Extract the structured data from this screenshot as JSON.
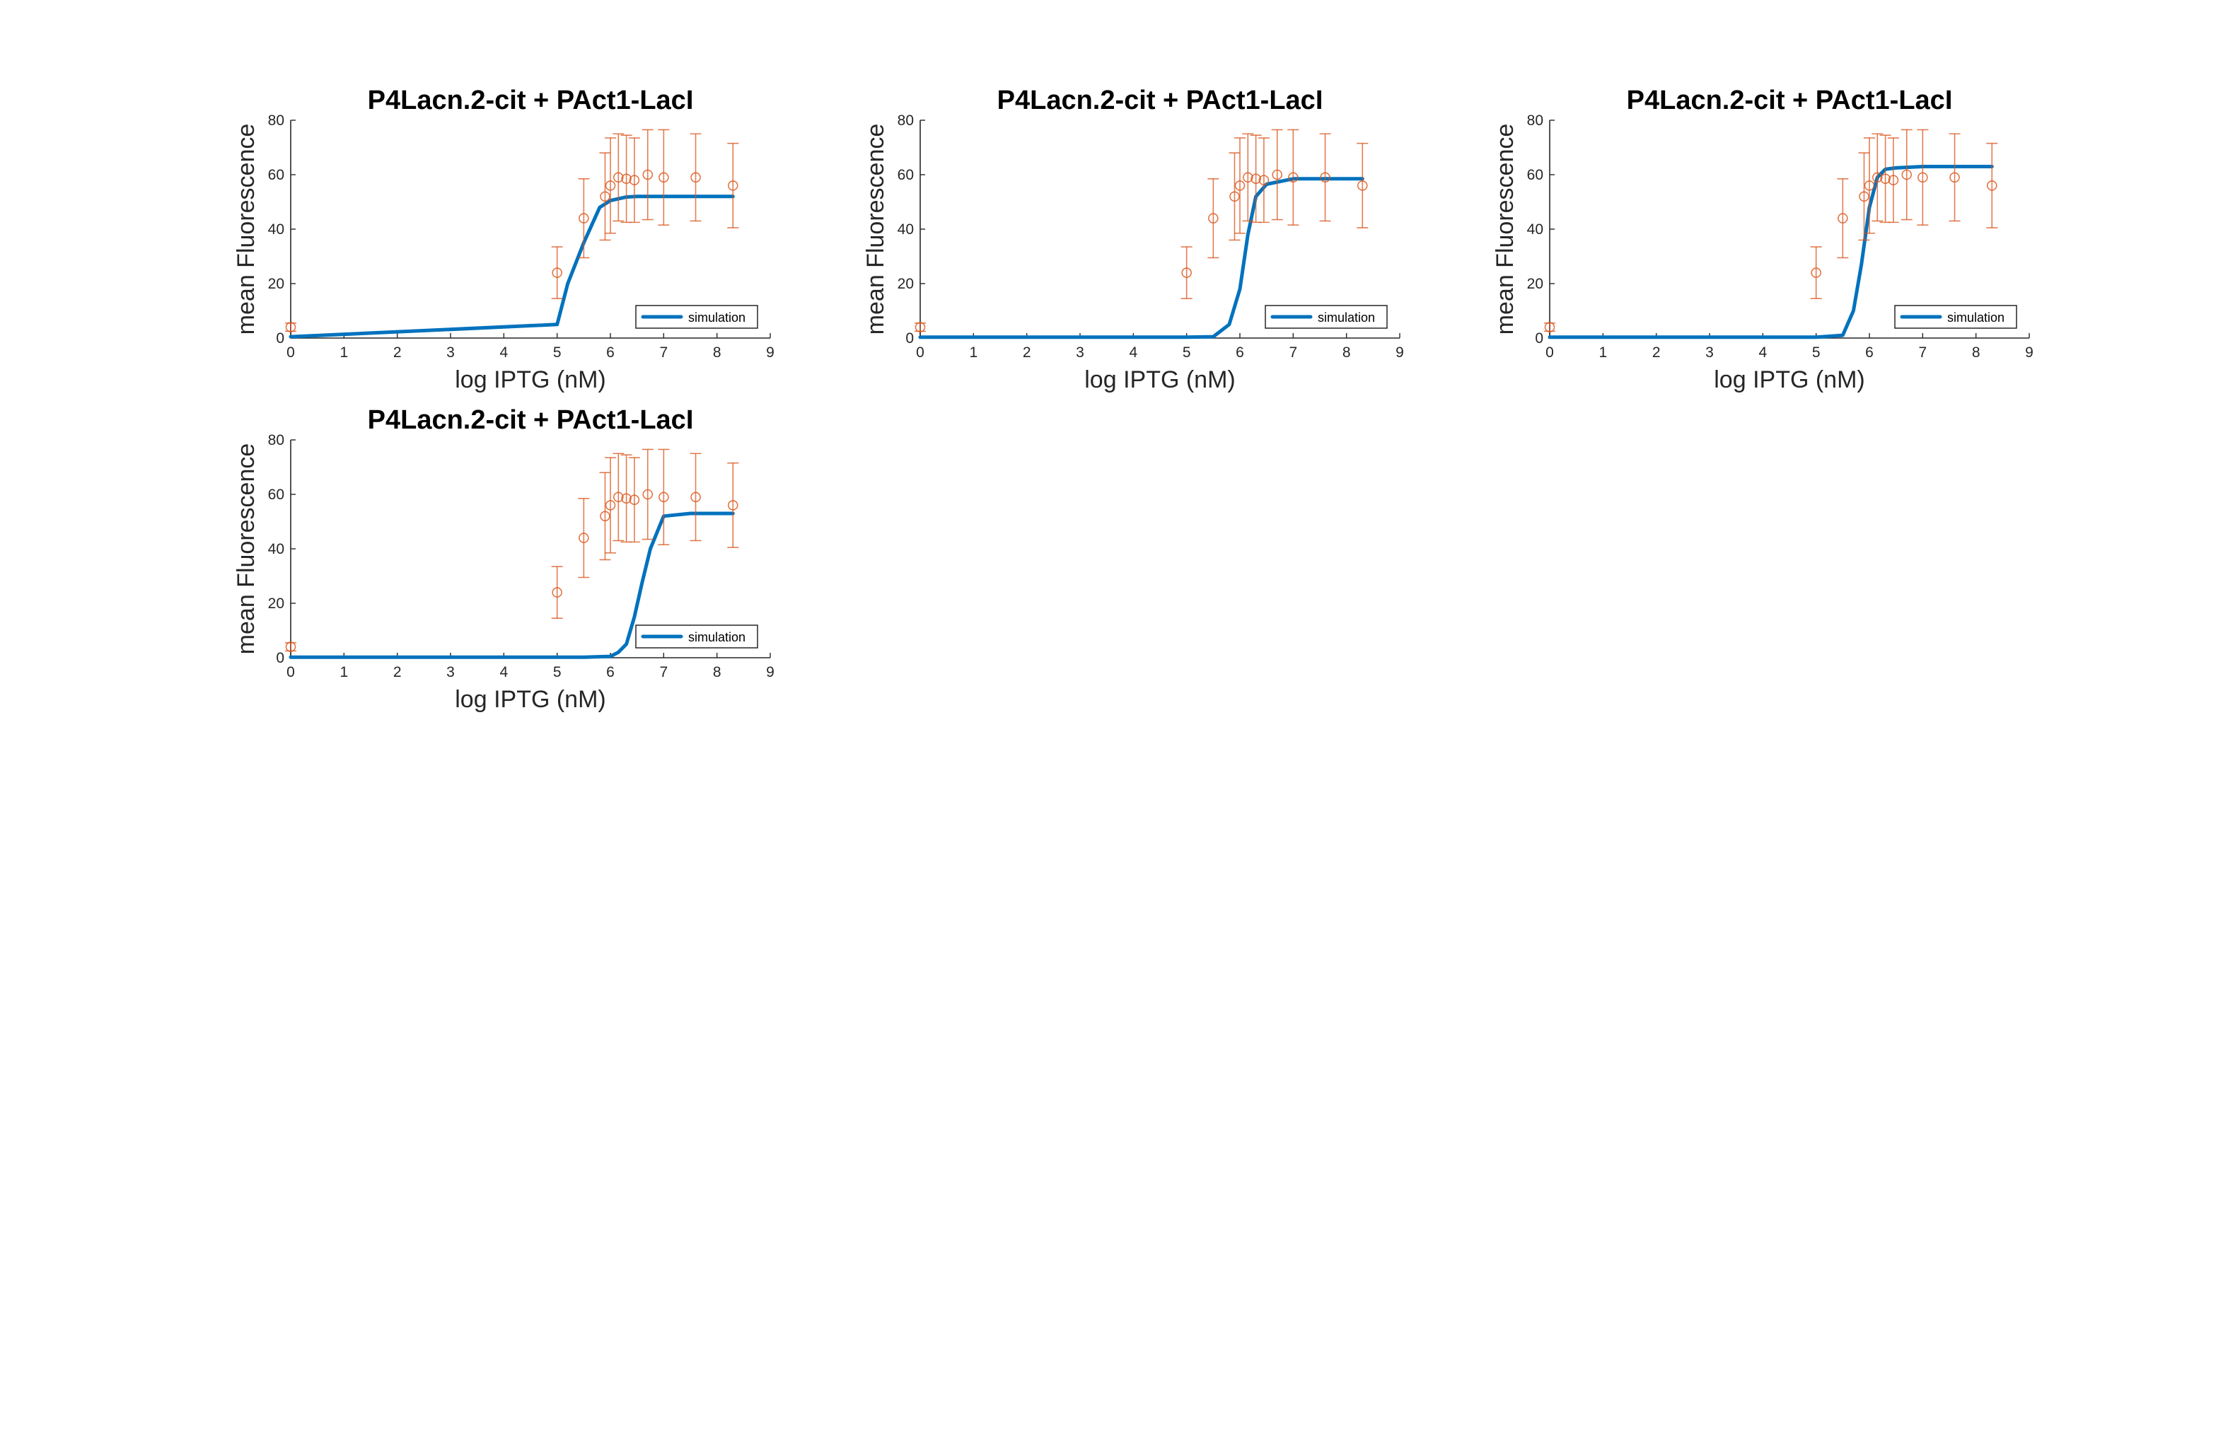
{
  "chart_data": [
    {
      "type": "line",
      "title": "P4Lacn.2-cit + PAct1-LacI",
      "xlabel": "log IPTG (nM)",
      "ylabel": "mean Fluorescence",
      "xlim": [
        0,
        9
      ],
      "ylim": [
        0,
        80
      ],
      "xticks": [
        "0",
        "1",
        "2",
        "3",
        "4",
        "5",
        "6",
        "7",
        "8",
        "9"
      ],
      "yticks": [
        "0",
        "20",
        "40",
        "60",
        "80"
      ],
      "grid": false,
      "legend_position": "bottom-right",
      "series": [
        {
          "name": "simulation",
          "style": "line",
          "color": "#0072BD",
          "x": [
            0,
            5,
            5.2,
            5.5,
            5.8,
            6.0,
            6.3,
            6.5,
            7,
            8.3
          ],
          "y": [
            0.5,
            5,
            20,
            35,
            48,
            50.5,
            51.8,
            52,
            52,
            52
          ]
        },
        {
          "name": "data",
          "style": "errorbar",
          "color": "#D95319",
          "x": [
            0,
            5.0,
            5.5,
            5.9,
            6.0,
            6.15,
            6.3,
            6.45,
            6.7,
            7.0,
            7.6,
            8.3
          ],
          "y": [
            4,
            24,
            44,
            52,
            56,
            59,
            58.5,
            58,
            60,
            59,
            59,
            56
          ],
          "yerr": [
            1.5,
            9.5,
            14.5,
            16,
            17.5,
            16,
            16,
            15.5,
            16.5,
            17.5,
            16,
            15.5
          ]
        }
      ]
    },
    {
      "type": "line",
      "title": "P4Lacn.2-cit + PAct1-LacI",
      "xlabel": "log IPTG (nM)",
      "ylabel": "mean Fluorescence",
      "xlim": [
        0,
        9
      ],
      "ylim": [
        0,
        80
      ],
      "xticks": [
        "0",
        "1",
        "2",
        "3",
        "4",
        "5",
        "6",
        "7",
        "8",
        "9"
      ],
      "yticks": [
        "0",
        "20",
        "40",
        "60",
        "80"
      ],
      "grid": false,
      "legend_position": "bottom-right",
      "series": [
        {
          "name": "simulation",
          "style": "line",
          "color": "#0072BD",
          "x": [
            0,
            5.0,
            5.5,
            5.8,
            6.0,
            6.15,
            6.3,
            6.5,
            7.0,
            8.3
          ],
          "y": [
            0.3,
            0.3,
            0.5,
            5,
            18,
            38,
            52,
            56.5,
            58.5,
            58.5
          ]
        },
        {
          "name": "data",
          "style": "errorbar",
          "color": "#D95319",
          "x": [
            0,
            5.0,
            5.5,
            5.9,
            6.0,
            6.15,
            6.3,
            6.45,
            6.7,
            7.0,
            7.6,
            8.3
          ],
          "y": [
            4,
            24,
            44,
            52,
            56,
            59,
            58.5,
            58,
            60,
            59,
            59,
            56
          ],
          "yerr": [
            1.5,
            9.5,
            14.5,
            16,
            17.5,
            16,
            16,
            15.5,
            16.5,
            17.5,
            16,
            15.5
          ]
        }
      ]
    },
    {
      "type": "line",
      "title": "P4Lacn.2-cit + PAct1-LacI",
      "xlabel": "log IPTG (nM)",
      "ylabel": "mean Fluorescence",
      "xlim": [
        0,
        9
      ],
      "ylim": [
        0,
        80
      ],
      "xticks": [
        "0",
        "1",
        "2",
        "3",
        "4",
        "5",
        "6",
        "7",
        "8",
        "9"
      ],
      "yticks": [
        "0",
        "20",
        "40",
        "60",
        "80"
      ],
      "grid": false,
      "legend_position": "bottom-right",
      "series": [
        {
          "name": "simulation",
          "style": "line",
          "color": "#0072BD",
          "x": [
            0,
            5.0,
            5.5,
            5.7,
            5.85,
            6.0,
            6.15,
            6.3,
            6.5,
            7.0,
            8.3
          ],
          "y": [
            0.3,
            0.3,
            1,
            10,
            27,
            48,
            59,
            62,
            62.5,
            63,
            63
          ]
        },
        {
          "name": "data",
          "style": "errorbar",
          "color": "#D95319",
          "x": [
            0,
            5.0,
            5.5,
            5.9,
            6.0,
            6.15,
            6.3,
            6.45,
            6.7,
            7.0,
            7.6,
            8.3
          ],
          "y": [
            4,
            24,
            44,
            52,
            56,
            59,
            58.5,
            58,
            60,
            59,
            59,
            56
          ],
          "yerr": [
            1.5,
            9.5,
            14.5,
            16,
            17.5,
            16,
            16,
            15.5,
            16.5,
            17.5,
            16,
            15.5
          ]
        }
      ]
    },
    {
      "type": "line",
      "title": "P4Lacn.2-cit + PAct1-LacI",
      "xlabel": "log IPTG (nM)",
      "ylabel": "mean Fluorescence",
      "xlim": [
        0,
        9
      ],
      "ylim": [
        0,
        80
      ],
      "xticks": [
        "0",
        "1",
        "2",
        "3",
        "4",
        "5",
        "6",
        "7",
        "8",
        "9"
      ],
      "yticks": [
        "0",
        "20",
        "40",
        "60",
        "80"
      ],
      "grid": false,
      "legend_position": "bottom-right",
      "series": [
        {
          "name": "simulation",
          "style": "line",
          "color": "#0072BD",
          "x": [
            0,
            5.5,
            6.0,
            6.15,
            6.3,
            6.45,
            6.6,
            6.75,
            7.0,
            7.5,
            8.3
          ],
          "y": [
            0.2,
            0.2,
            0.5,
            2,
            5,
            15,
            28,
            40,
            52,
            53,
            53
          ]
        },
        {
          "name": "data",
          "style": "errorbar",
          "color": "#D95319",
          "x": [
            0,
            5.0,
            5.5,
            5.9,
            6.0,
            6.15,
            6.3,
            6.45,
            6.7,
            7.0,
            7.6,
            8.3
          ],
          "y": [
            4,
            24,
            44,
            52,
            56,
            59,
            58.5,
            58,
            60,
            59,
            59,
            56
          ],
          "yerr": [
            1.5,
            9.5,
            14.5,
            16,
            17.5,
            16,
            16,
            15.5,
            16.5,
            17.5,
            16,
            15.5
          ]
        }
      ]
    }
  ]
}
